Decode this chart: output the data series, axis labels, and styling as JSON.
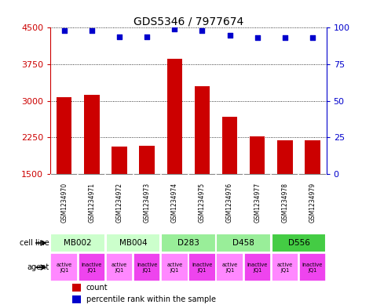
{
  "title": "GDS5346 / 7977674",
  "samples": [
    "GSM1234970",
    "GSM1234971",
    "GSM1234972",
    "GSM1234973",
    "GSM1234974",
    "GSM1234975",
    "GSM1234976",
    "GSM1234977",
    "GSM1234978",
    "GSM1234979"
  ],
  "counts": [
    3080,
    3130,
    2060,
    2080,
    3870,
    3300,
    2680,
    2280,
    2200,
    2200
  ],
  "percentiles": [
    98,
    98,
    94,
    94,
    99,
    98,
    95,
    93,
    93,
    93
  ],
  "ylim_left": [
    1500,
    4500
  ],
  "ylim_right": [
    0,
    100
  ],
  "yticks_left": [
    1500,
    2250,
    3000,
    3750,
    4500
  ],
  "yticks_right": [
    0,
    25,
    50,
    75,
    100
  ],
  "cell_lines": [
    {
      "label": "MB002",
      "span": [
        0,
        2
      ],
      "color": "#ccffcc"
    },
    {
      "label": "MB004",
      "span": [
        2,
        4
      ],
      "color": "#ccffcc"
    },
    {
      "label": "D283",
      "span": [
        4,
        6
      ],
      "color": "#99ee99"
    },
    {
      "label": "D458",
      "span": [
        6,
        8
      ],
      "color": "#99ee99"
    },
    {
      "label": "D556",
      "span": [
        8,
        10
      ],
      "color": "#44cc44"
    }
  ],
  "agents": [
    {
      "label": "active\nJQ1",
      "color": "#ff88ff"
    },
    {
      "label": "inactive\nJQ1",
      "color": "#ee44ee"
    },
    {
      "label": "active\nJQ1",
      "color": "#ff88ff"
    },
    {
      "label": "inactive\nJQ1",
      "color": "#ee44ee"
    },
    {
      "label": "active\nJQ1",
      "color": "#ff88ff"
    },
    {
      "label": "inactive\nJQ1",
      "color": "#ee44ee"
    },
    {
      "label": "active\nJQ1",
      "color": "#ff88ff"
    },
    {
      "label": "inactive\nJQ1",
      "color": "#ee44ee"
    },
    {
      "label": "active\nJQ1",
      "color": "#ff88ff"
    },
    {
      "label": "inactive\nJQ1",
      "color": "#ee44ee"
    }
  ],
  "bar_color": "#cc0000",
  "dot_color": "#0000cc",
  "left_axis_color": "#cc0000",
  "right_axis_color": "#0000cc",
  "bg_color": "#ffffff",
  "sample_bg_color": "#bbbbbb",
  "grid_color": "#000000",
  "spine_color": "#888888"
}
